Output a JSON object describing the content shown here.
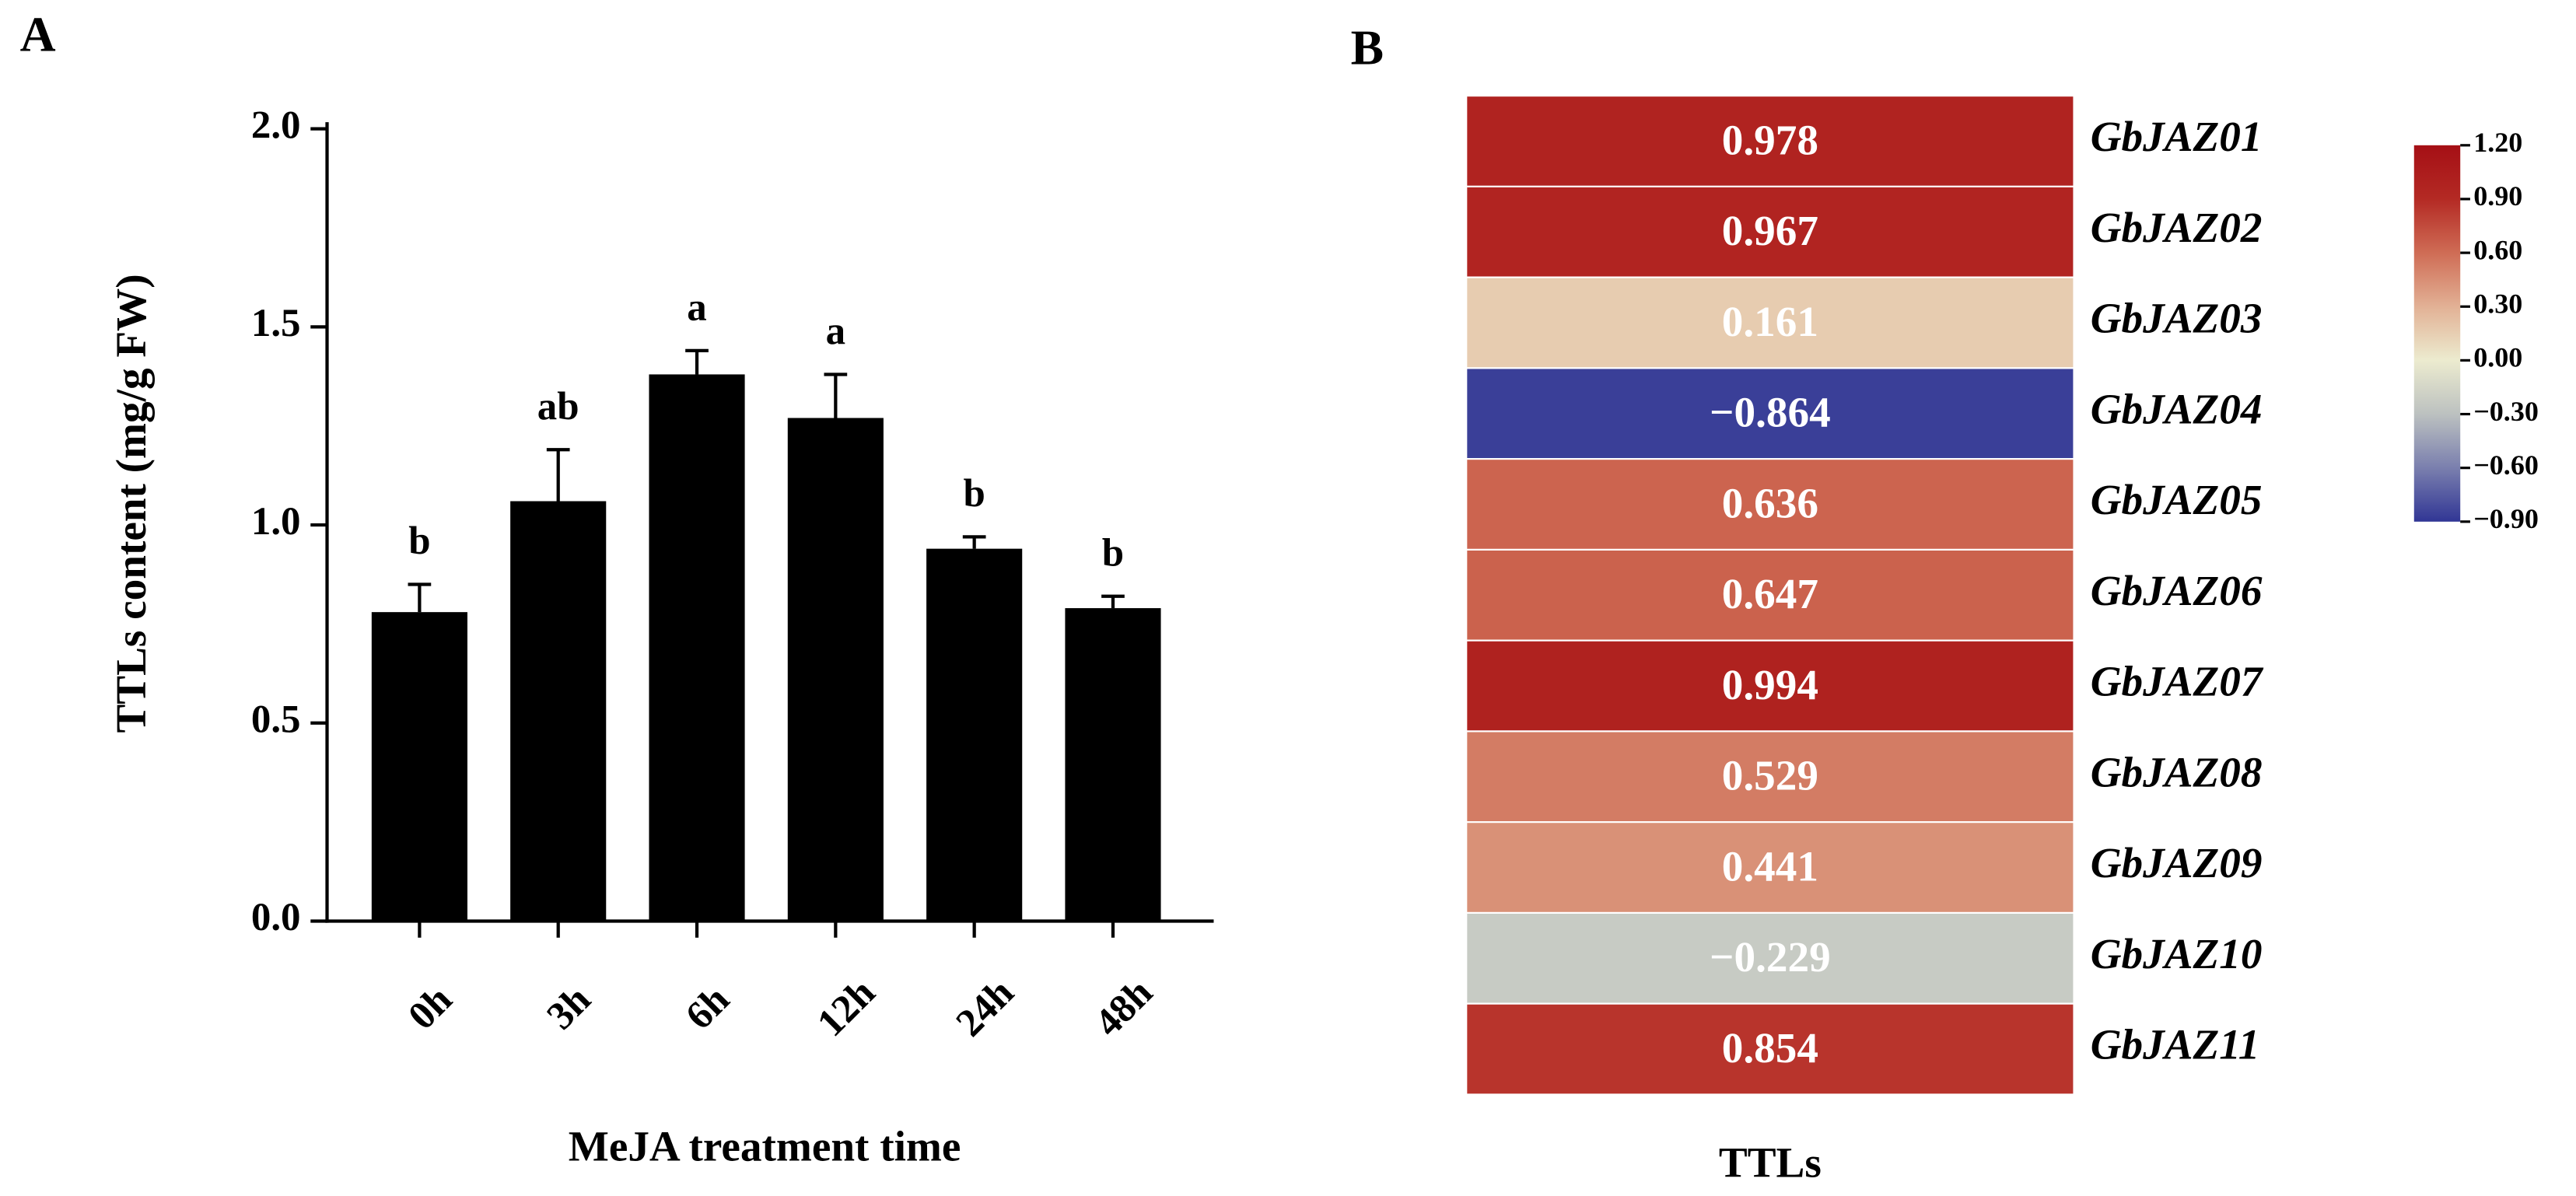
{
  "chart_data": [
    {
      "type": "bar",
      "panel": "A",
      "xlabel": "MeJA treatment time",
      "ylabel": "TTLs content (mg/g FW)",
      "categories": [
        "0h",
        "3h",
        "6h",
        "12h",
        "24h",
        "48h"
      ],
      "values": [
        0.78,
        1.06,
        1.38,
        1.27,
        0.94,
        0.79
      ],
      "errors": [
        0.07,
        0.13,
        0.06,
        0.11,
        0.03,
        0.03
      ],
      "letters": [
        "b",
        "ab",
        "a",
        "a",
        "b",
        "b"
      ],
      "color": "#000000",
      "ylim": [
        0,
        2
      ],
      "yticks": [
        {
          "value": 0,
          "label": "0.0"
        },
        0.5,
        {
          "value": 1,
          "label": "1.0"
        },
        1.5,
        {
          "value": 2,
          "label": "2.0"
        }
      ]
    },
    {
      "type": "heatmap",
      "panel": "B",
      "xlabel": "TTLs",
      "rows": [
        "GbJAZ01",
        "GbJAZ02",
        "GbJAZ03",
        "GbJAZ04",
        "GbJAZ05",
        "GbJAZ06",
        "GbJAZ07",
        "GbJAZ08",
        "GbJAZ09",
        "GbJAZ10",
        "GbJAZ11"
      ],
      "values": [
        0.978,
        0.967,
        0.161,
        -0.864,
        0.636,
        0.647,
        0.994,
        0.529,
        0.441,
        -0.229,
        0.854
      ],
      "value_labels": [
        "0.978",
        "0.967",
        "0.161",
        "−0.864",
        "0.636",
        "0.647",
        "0.994",
        "0.529",
        "0.441",
        "−0.229",
        "0.854"
      ],
      "clim": [
        -0.9,
        1.2
      ],
      "colors": [
        "#313695",
        "#7a7fae",
        "#bcc1c0",
        "#ecebcf",
        "#e2b195",
        "#cf6c55",
        "#b42a24",
        "#a50f15"
      ],
      "cticks": [
        {
          "value": 1.2,
          "label": "1.20"
        },
        {
          "value": 0.9,
          "label": "0.90"
        },
        {
          "value": 0.6,
          "label": "0.60"
        },
        {
          "value": 0.3,
          "label": "0.30"
        },
        {
          "value": 0,
          "label": "0.00"
        },
        {
          "value": -0.3,
          "label": "−0.30"
        },
        {
          "value": -0.6,
          "label": "−0.60"
        },
        {
          "value": -0.9,
          "label": "−0.90"
        }
      ]
    }
  ]
}
